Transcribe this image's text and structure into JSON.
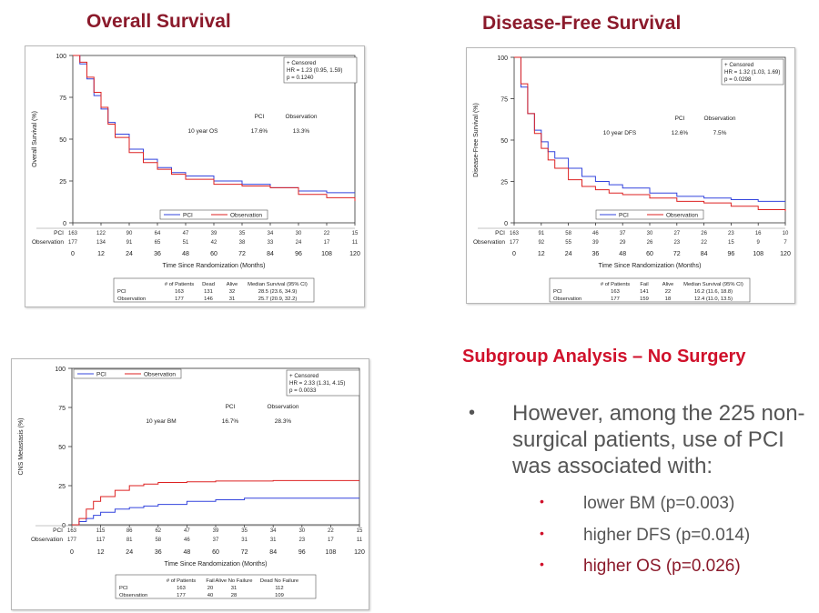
{
  "colors": {
    "pci": "#3344dd",
    "observation": "#dd2222",
    "title": "#8b1a2b",
    "accent": "#d0112b",
    "body": "#555555"
  },
  "titles": {
    "os": "Overall Survival",
    "dfs": "Disease-Free Survival"
  },
  "subgroup": {
    "title": "Subgroup Analysis – No Surgery",
    "bullet": "However, among the 225 non-surgical patients, use of PCI was associated with:",
    "items": [
      "lower BM (p=0.003)",
      "higher DFS (p=0.014)",
      "higher OS (p=0.026)"
    ]
  },
  "chart_data": [
    {
      "id": "os",
      "type": "line",
      "ylabel": "Overall Survival (%)",
      "xlabel": "Time Since Randomization (Months)",
      "xlim": [
        0,
        120
      ],
      "ylim": [
        0,
        100
      ],
      "xticks": [
        0,
        12,
        24,
        36,
        48,
        60,
        72,
        84,
        96,
        108,
        120
      ],
      "yticks": [
        0,
        25,
        50,
        75,
        100
      ],
      "censor_box": [
        "+ Censored",
        "HR = 1.23 (0.95, 1.59)",
        "p = 0.1240"
      ],
      "annotation": {
        "row_label": "10 year OS",
        "headers": [
          "PCI",
          "Observation"
        ],
        "values": [
          "17.6%",
          "13.3%"
        ]
      },
      "legend_position": "bottom-center",
      "series": [
        {
          "name": "PCI",
          "x": [
            0,
            3,
            6,
            9,
            12,
            15,
            18,
            24,
            30,
            36,
            42,
            48,
            60,
            72,
            84,
            96,
            108,
            120
          ],
          "y": [
            100,
            95,
            86,
            76,
            68,
            60,
            53,
            44,
            38,
            33,
            30,
            28,
            25,
            23,
            21,
            19,
            18,
            18
          ]
        },
        {
          "name": "Observation",
          "x": [
            0,
            3,
            6,
            9,
            12,
            15,
            18,
            24,
            30,
            36,
            42,
            48,
            60,
            72,
            84,
            96,
            108,
            120
          ],
          "y": [
            100,
            96,
            87,
            78,
            69,
            59,
            51,
            42,
            36,
            32,
            29,
            26,
            23,
            22,
            21,
            17,
            15,
            13
          ]
        }
      ],
      "at_risk": {
        "times": [
          "0",
          "12",
          "24",
          "36",
          "48",
          "60",
          "72",
          "84",
          "96",
          "108",
          "120"
        ],
        "rows": [
          {
            "label": "PCI",
            "values": [
              "163",
              "122",
              "90",
              "64",
              "47",
              "39",
              "35",
              "34",
              "30",
              "22",
              "15"
            ]
          },
          {
            "label": "Observation",
            "values": [
              "177",
              "134",
              "91",
              "65",
              "51",
              "42",
              "38",
              "33",
              "24",
              "17",
              "11"
            ]
          }
        ]
      },
      "summary": {
        "headers": [
          "# of Patients",
          "Dead",
          "Alive",
          "Median Survival (95% CI)"
        ],
        "rows": [
          {
            "label": "PCI",
            "values": [
              "163",
              "131",
              "32",
              "28.5 (23.6, 34.9)"
            ]
          },
          {
            "label": "Observation",
            "values": [
              "177",
              "146",
              "31",
              "25.7 (20.9, 32.2)"
            ]
          }
        ]
      }
    },
    {
      "id": "dfs",
      "type": "line",
      "ylabel": "Disease-Free Survival (%)",
      "xlabel": "Time Since Randomization (Months)",
      "xlim": [
        0,
        120
      ],
      "ylim": [
        0,
        100
      ],
      "xticks": [
        0,
        12,
        24,
        36,
        48,
        60,
        72,
        84,
        96,
        108,
        120
      ],
      "yticks": [
        0,
        25,
        50,
        75,
        100
      ],
      "censor_box": [
        "+ Censored",
        "HR = 1.32 (1.03, 1.69)",
        "p = 0.0298"
      ],
      "annotation": {
        "row_label": "10 year DFS",
        "headers": [
          "PCI",
          "Observation"
        ],
        "values": [
          "12.6%",
          "7.5%"
        ]
      },
      "legend_position": "bottom-center",
      "series": [
        {
          "name": "PCI",
          "x": [
            0,
            3,
            6,
            9,
            12,
            15,
            18,
            24,
            30,
            36,
            42,
            48,
            60,
            72,
            84,
            96,
            108,
            120
          ],
          "y": [
            100,
            82,
            66,
            56,
            49,
            43,
            39,
            33,
            28,
            25,
            23,
            21,
            18,
            16,
            15,
            14,
            13,
            13
          ]
        },
        {
          "name": "Observation",
          "x": [
            0,
            3,
            6,
            9,
            12,
            15,
            18,
            24,
            30,
            36,
            42,
            48,
            60,
            72,
            84,
            96,
            108,
            120
          ],
          "y": [
            100,
            84,
            66,
            54,
            45,
            38,
            33,
            26,
            22,
            20,
            18,
            17,
            15,
            13,
            12,
            10,
            8,
            7
          ]
        }
      ],
      "at_risk": {
        "times": [
          "0",
          "12",
          "24",
          "36",
          "48",
          "60",
          "72",
          "84",
          "96",
          "108",
          "120"
        ],
        "rows": [
          {
            "label": "PCI",
            "values": [
              "163",
              "91",
              "58",
              "46",
              "37",
              "30",
              "27",
              "26",
              "23",
              "16",
              "10"
            ]
          },
          {
            "label": "Observation",
            "values": [
              "177",
              "92",
              "55",
              "39",
              "29",
              "26",
              "23",
              "22",
              "15",
              "9",
              "7"
            ]
          }
        ]
      },
      "summary": {
        "headers": [
          "# of Patients",
          "Fail",
          "Alive",
          "Median Survival (95% CI)"
        ],
        "rows": [
          {
            "label": "PCI",
            "values": [
              "163",
              "141",
              "22",
              "16.2 (11.6, 18.8)"
            ]
          },
          {
            "label": "Observation",
            "values": [
              "177",
              "159",
              "18",
              "12.4 (11.0, 13.5)"
            ]
          }
        ]
      }
    },
    {
      "id": "cns",
      "type": "line",
      "ylabel": "CNS Metastasis (%)",
      "xlabel": "Time Since Randomization (Months)",
      "xlim": [
        0,
        120
      ],
      "ylim": [
        0,
        100
      ],
      "xticks": [
        0,
        12,
        24,
        36,
        48,
        60,
        72,
        84,
        96,
        108,
        120
      ],
      "yticks": [
        0,
        25,
        50,
        75,
        100
      ],
      "censor_box": [
        "+ Censored",
        "HR = 2.33 (1.31, 4.15)",
        "p = 0.0033"
      ],
      "annotation": {
        "row_label": "10 year BM",
        "headers": [
          "PCI",
          "Observation"
        ],
        "values": [
          "16.7%",
          "28.3%"
        ]
      },
      "legend_position": "top-left",
      "series": [
        {
          "name": "PCI",
          "x": [
            0,
            3,
            6,
            9,
            12,
            18,
            24,
            30,
            36,
            48,
            60,
            72,
            84,
            96,
            108,
            120
          ],
          "y": [
            0,
            2,
            4,
            6,
            8,
            10,
            11,
            12,
            13,
            15,
            16,
            17,
            17,
            17,
            17,
            17
          ]
        },
        {
          "name": "Observation",
          "x": [
            0,
            3,
            6,
            9,
            12,
            18,
            24,
            30,
            36,
            48,
            60,
            72,
            84,
            96,
            108,
            120
          ],
          "y": [
            0,
            4,
            10,
            15,
            18,
            22,
            25,
            26,
            27,
            27.5,
            28,
            28,
            28.3,
            28.3,
            28.3,
            28.3
          ]
        }
      ],
      "at_risk": {
        "times": [
          "0",
          "12",
          "24",
          "36",
          "48",
          "60",
          "72",
          "84",
          "96",
          "108",
          "120"
        ],
        "rows": [
          {
            "label": "PCI",
            "values": [
              "163",
              "115",
              "86",
              "62",
              "47",
              "39",
              "35",
              "34",
              "30",
              "22",
              "15"
            ]
          },
          {
            "label": "Observation",
            "values": [
              "177",
              "117",
              "81",
              "58",
              "46",
              "37",
              "31",
              "31",
              "23",
              "17",
              "11"
            ]
          }
        ]
      },
      "summary": {
        "headers": [
          "# of Patients",
          "Fail",
          "Alive No Failure",
          "Dead No Failure"
        ],
        "rows": [
          {
            "label": "PCI",
            "values": [
              "163",
              "20",
              "31",
              "112"
            ]
          },
          {
            "label": "Observation",
            "values": [
              "177",
              "40",
              "28",
              "109"
            ]
          }
        ]
      }
    }
  ]
}
